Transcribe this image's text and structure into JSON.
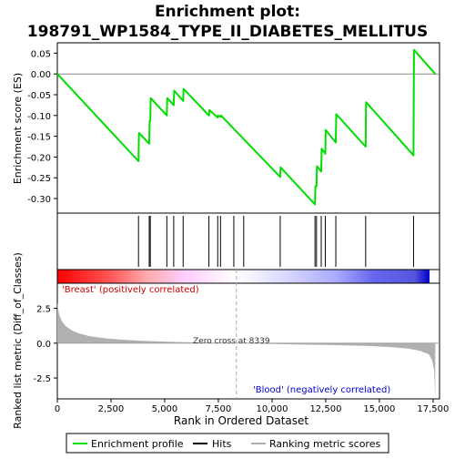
{
  "title": "Enrichment plot:\n198791_WP1584_TYPE_II_DIABETES_MELLITUS",
  "title_lines": [
    "Enrichment plot:",
    "198791_WP1584_TYPE_II_DIABETES_MELLITUS"
  ],
  "ylabel_top": "Enrichment score (ES)",
  "ylabel_bottom": "Ranked list metric (Diff_of_Classes)",
  "xlabel": "Rank in Ordered Dataset",
  "pos_label": "'Breast' (positively correlated)",
  "neg_label": "'Blood' (negatively correlated)",
  "zero_cross_label": "Zero cross at 8339",
  "legend": {
    "enrichment": "Enrichment profile",
    "hits": "Hits",
    "ranking": "Ranking metric scores"
  },
  "colors": {
    "enrichment_line": "#00dd00",
    "hits": "#000000",
    "ranking_fill": "#b0b0b0",
    "pos_text": "#cc0000",
    "neg_text": "#0000cc"
  },
  "chart_data": {
    "type": "line",
    "x_range": [
      0,
      17800
    ],
    "x_ticks": [
      0,
      2500,
      5000,
      7500,
      10000,
      12500,
      15000,
      17500
    ],
    "x_tick_labels": [
      "0",
      "2,500",
      "5,000",
      "7,500",
      "10,000",
      "12,500",
      "15,000",
      "17,500"
    ],
    "es_ylim": [
      -0.335,
      0.075
    ],
    "es_yticks": [
      0.05,
      0.0,
      -0.05,
      -0.1,
      -0.15,
      -0.2,
      -0.25,
      -0.3
    ],
    "es_ytick_labels": [
      "0.05",
      "0.00",
      "-0.05",
      "-0.10",
      "-0.15",
      "-0.20",
      "-0.25",
      "-0.30"
    ],
    "es_points": [
      [
        0,
        0.0
      ],
      [
        3780,
        -0.21
      ],
      [
        3800,
        -0.142
      ],
      [
        4280,
        -0.168
      ],
      [
        4300,
        -0.113
      ],
      [
        4330,
        -0.113
      ],
      [
        4350,
        -0.058
      ],
      [
        5100,
        -0.1
      ],
      [
        5120,
        -0.058
      ],
      [
        5420,
        -0.075
      ],
      [
        5440,
        -0.04
      ],
      [
        5860,
        -0.065
      ],
      [
        5880,
        -0.036
      ],
      [
        7060,
        -0.1
      ],
      [
        7080,
        -0.087
      ],
      [
        7470,
        -0.105
      ],
      [
        7490,
        -0.1
      ],
      [
        7600,
        -0.103
      ],
      [
        7620,
        -0.1
      ],
      [
        10380,
        -0.248
      ],
      [
        10400,
        -0.225
      ],
      [
        12000,
        -0.314
      ],
      [
        12020,
        -0.27
      ],
      [
        12070,
        -0.27
      ],
      [
        12090,
        -0.222
      ],
      [
        12290,
        -0.235
      ],
      [
        12310,
        -0.18
      ],
      [
        12480,
        -0.192
      ],
      [
        12500,
        -0.135
      ],
      [
        12970,
        -0.165
      ],
      [
        12990,
        -0.097
      ],
      [
        14360,
        -0.175
      ],
      [
        14380,
        -0.068
      ],
      [
        16590,
        -0.196
      ],
      [
        16610,
        0.058
      ],
      [
        17600,
        0.0
      ]
    ],
    "hits": [
      3780,
      4280,
      4330,
      5100,
      5420,
      5860,
      7060,
      7470,
      7600,
      8220,
      8680,
      10380,
      12000,
      12070,
      12290,
      12480,
      12970,
      14360,
      16590
    ],
    "metric_ylim": [
      -4.0,
      4.3
    ],
    "metric_yticks": [
      2.5,
      0.0,
      -2.5
    ],
    "metric_ytick_labels": [
      "2.5",
      "0.0",
      "-2.5"
    ],
    "metric_points": [
      [
        0,
        2.9
      ],
      [
        80,
        2.1
      ],
      [
        200,
        1.6
      ],
      [
        400,
        1.2
      ],
      [
        700,
        0.9
      ],
      [
        1000,
        0.7
      ],
      [
        1500,
        0.5
      ],
      [
        2200,
        0.35
      ],
      [
        3000,
        0.25
      ],
      [
        4000,
        0.17
      ],
      [
        5000,
        0.11
      ],
      [
        6000,
        0.07
      ],
      [
        7000,
        0.04
      ],
      [
        8339,
        0.0
      ],
      [
        9500,
        -0.04
      ],
      [
        11000,
        -0.09
      ],
      [
        12500,
        -0.13
      ],
      [
        13500,
        -0.16
      ],
      [
        14500,
        -0.2
      ],
      [
        15500,
        -0.28
      ],
      [
        16300,
        -0.38
      ],
      [
        16900,
        -0.55
      ],
      [
        17300,
        -0.8
      ],
      [
        17450,
        -1.2
      ],
      [
        17550,
        -1.9
      ],
      [
        17600,
        -4.0
      ]
    ],
    "zero_cross": 8339,
    "n_genes": 17600
  }
}
